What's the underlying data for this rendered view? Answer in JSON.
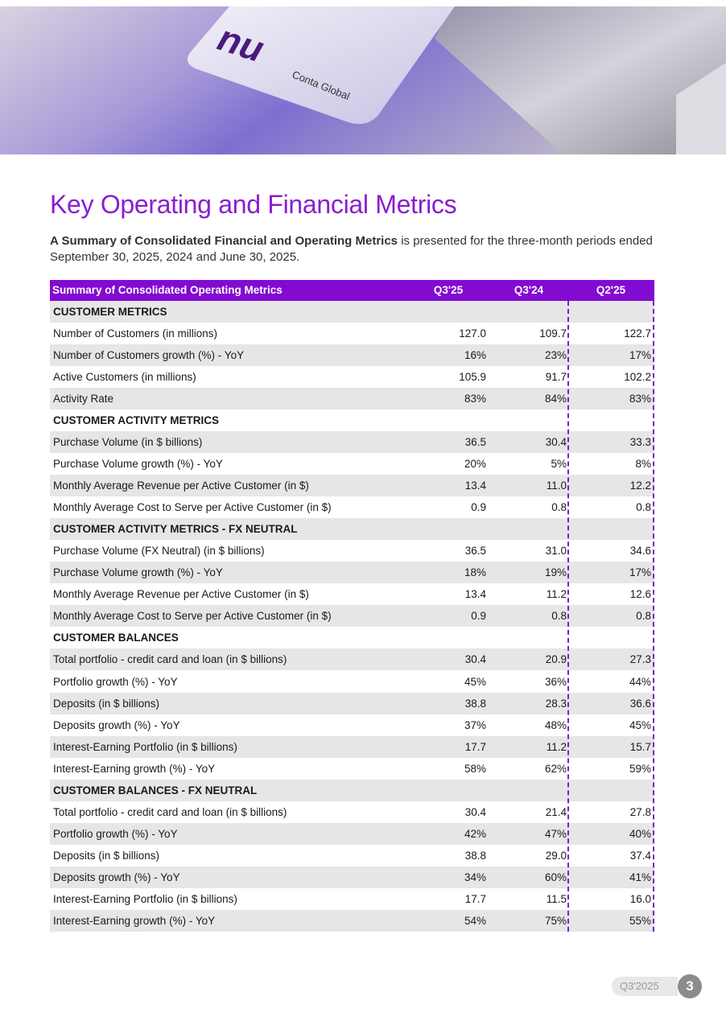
{
  "image": {
    "card_logo": "nu",
    "card_label": "Conta Global"
  },
  "title": "Key Operating and Financial Metrics",
  "intro": {
    "bold": "A Summary of Consolidated Financial and Operating Metrics",
    "text": " is presented for the three-month periods ended September 30, 2025, 2024 and June 30, 2025."
  },
  "table": {
    "header": [
      "Summary of Consolidated Operating Metrics",
      "Q3'25",
      "Q3'24",
      "Q2'25"
    ],
    "sections": [
      {
        "title": "CUSTOMER METRICS",
        "rows": [
          [
            "Number of Customers (in millions)",
            "127.0",
            "109.7",
            "122.7"
          ],
          [
            "Number of Customers growth (%) - YoY",
            "16%",
            "23%",
            "17%"
          ],
          [
            "Active Customers (in millions)",
            "105.9",
            "91.7",
            "102.2"
          ],
          [
            "Activity Rate",
            "83%",
            "84%",
            "83%"
          ]
        ]
      },
      {
        "title": "CUSTOMER ACTIVITY METRICS",
        "rows": [
          [
            "Purchase Volume (in $ billions)",
            "36.5",
            "30.4",
            "33.3"
          ],
          [
            "Purchase Volume growth (%) - YoY",
            "20%",
            "5%",
            "8%"
          ],
          [
            "Monthly Average Revenue per Active Customer (in $)",
            "13.4",
            "11.0",
            "12.2"
          ],
          [
            "Monthly Average Cost to Serve per Active Customer (in $)",
            "0.9",
            "0.8",
            "0.8"
          ]
        ]
      },
      {
        "title": "CUSTOMER ACTIVITY METRICS - FX NEUTRAL",
        "rows": [
          [
            "Purchase Volume (FX Neutral) (in $ billions)",
            "36.5",
            "31.0",
            "34.6"
          ],
          [
            "Purchase Volume growth (%) - YoY",
            "18%",
            "19%",
            "17%"
          ],
          [
            "Monthly Average Revenue per Active Customer (in $)",
            "13.4",
            "11.2",
            "12.6"
          ],
          [
            "Monthly Average Cost to Serve per Active Customer (in $)",
            "0.9",
            "0.8",
            "0.8"
          ]
        ]
      },
      {
        "title": "CUSTOMER BALANCES",
        "rows": [
          [
            "Total portfolio - credit card and loan (in $ billions)",
            "30.4",
            "20.9",
            "27.3"
          ],
          [
            "Portfolio growth (%) - YoY",
            "45%",
            "36%",
            "44%"
          ],
          [
            "Deposits (in $ billions)",
            "38.8",
            "28.3",
            "36.6"
          ],
          [
            "Deposits growth (%) - YoY",
            "37%",
            "48%",
            "45%"
          ],
          [
            "Interest-Earning Portfolio (in $ billions)",
            "17.7",
            "11.2",
            "15.7"
          ],
          [
            "Interest-Earning growth (%) - YoY",
            "58%",
            "62%",
            "59%"
          ]
        ]
      },
      {
        "title": "CUSTOMER BALANCES - FX NEUTRAL",
        "rows": [
          [
            "Total portfolio - credit card and loan (in $ billions)",
            "30.4",
            "21.4",
            "27.8"
          ],
          [
            "Portfolio growth (%) - YoY",
            "42%",
            "47%",
            "40%"
          ],
          [
            "Deposits (in $ billions)",
            "38.8",
            "29.0",
            "37.4"
          ],
          [
            "Deposits growth (%) - YoY",
            "34%",
            "60%",
            "41%"
          ],
          [
            "Interest-Earning Portfolio (in $ billions)",
            "17.7",
            "11.5",
            "16.0"
          ],
          [
            "Interest-Earning growth (%) - YoY",
            "54%",
            "75%",
            "55%"
          ]
        ]
      }
    ]
  },
  "footer": {
    "period": "Q3'2025",
    "page": "3"
  }
}
